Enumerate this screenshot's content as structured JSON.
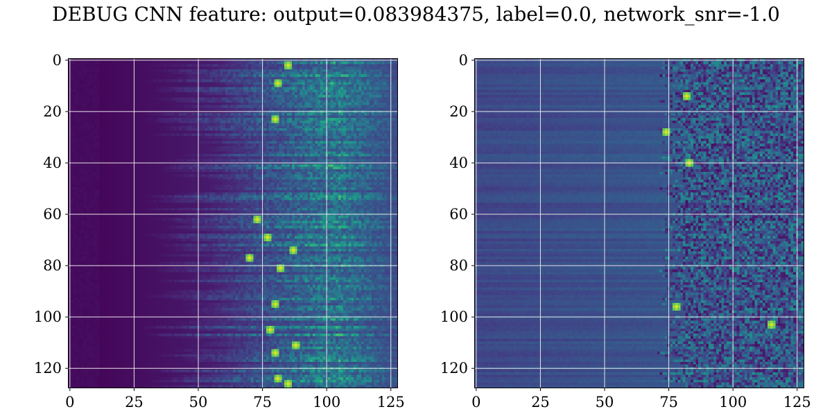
{
  "title": "DEBUG CNN feature: output=0.083984375, label=0.0, network_snr=-1.0",
  "colors": {
    "colormap": "viridis",
    "grid": "#e6e6e6",
    "axis": "#000000"
  },
  "chart_data": [
    {
      "type": "heatmap",
      "colormap": "viridis",
      "grid": true,
      "xlim": [
        0,
        127
      ],
      "ylim": [
        127,
        0
      ],
      "xticks": [
        0,
        25,
        50,
        75,
        100,
        125
      ],
      "yticks": [
        0,
        20,
        40,
        60,
        80,
        100,
        120
      ],
      "xtick_labels": [
        "0",
        "25",
        "50",
        "75",
        "100",
        "125"
      ],
      "ytick_labels": [
        "0",
        "20",
        "40",
        "60",
        "80",
        "100",
        "120"
      ],
      "shape": [
        128,
        128
      ],
      "description_of_values": "rows show energy increasing from left (near 0) toward columns 60-100 with bright streaks near column 78-90",
      "peak_cells": [
        [
          2,
          85
        ],
        [
          9,
          81
        ],
        [
          23,
          80
        ],
        [
          62,
          73
        ],
        [
          69,
          77
        ],
        [
          74,
          87
        ],
        [
          77,
          70
        ],
        [
          81,
          82
        ],
        [
          95,
          80
        ],
        [
          105,
          78
        ],
        [
          111,
          88
        ],
        [
          114,
          80
        ],
        [
          124,
          81
        ],
        [
          126,
          85
        ]
      ]
    },
    {
      "type": "heatmap",
      "colormap": "viridis",
      "grid": true,
      "xlim": [
        0,
        127
      ],
      "ylim": [
        127,
        0
      ],
      "xticks": [
        0,
        25,
        50,
        75,
        100,
        125
      ],
      "yticks": [
        0,
        20,
        40,
        60,
        80,
        100,
        120
      ],
      "xtick_labels": [
        "0",
        "25",
        "50",
        "75",
        "100",
        "125"
      ],
      "ytick_labels": [
        "0",
        "20",
        "40",
        "60",
        "80",
        "100",
        "120"
      ],
      "shape": [
        128,
        128
      ],
      "description_of_values": "horizontal banded texture on left half, noisy speckle on right half beginning near column 75",
      "peak_cells": [
        [
          14,
          82
        ],
        [
          40,
          83
        ],
        [
          103,
          115
        ],
        [
          96,
          78
        ],
        [
          28,
          74
        ]
      ]
    }
  ]
}
